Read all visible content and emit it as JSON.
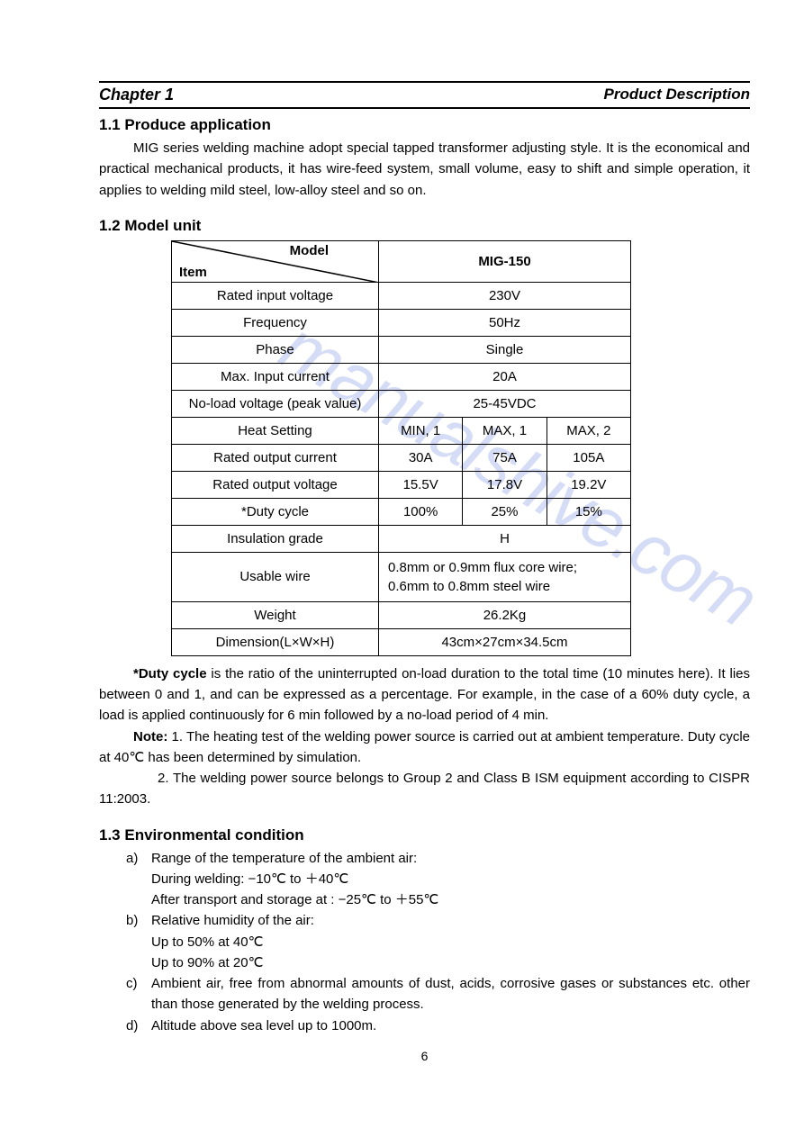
{
  "header": {
    "chapter": "Chapter 1",
    "title": "Product Description"
  },
  "section_1_1": {
    "title": "1.1 Produce application",
    "paragraph": "MIG series welding machine adopt special tapped transformer adjusting style. It is the economical and practical mechanical products, it has wire-feed system, small volume, easy to shift and simple operation, it applies to welding mild steel, low-alloy steel and so on."
  },
  "section_1_2": {
    "title": "1.2 Model unit",
    "table": {
      "header_model": "Model",
      "header_item": "Item",
      "header_value": "MIG-150",
      "rows": [
        {
          "label": "Rated input voltage",
          "value": "230V",
          "colspan": 3
        },
        {
          "label": "Frequency",
          "value": "50Hz",
          "colspan": 3
        },
        {
          "label": "Phase",
          "value": "Single",
          "colspan": 3
        },
        {
          "label": "Max. Input current",
          "value": "20A",
          "colspan": 3
        },
        {
          "label": "No-load voltage (peak value)",
          "value": "25-45VDC",
          "colspan": 3
        },
        {
          "label": "Heat Setting",
          "values": [
            "MIN, 1",
            "MAX, 1",
            "MAX, 2"
          ]
        },
        {
          "label": "Rated output current",
          "values": [
            "30A",
            "75A",
            "105A"
          ]
        },
        {
          "label": "Rated output voltage",
          "values": [
            "15.5V",
            "17.8V",
            "19.2V"
          ]
        },
        {
          "label": "*Duty cycle",
          "values": [
            "100%",
            "25%",
            "15%"
          ]
        },
        {
          "label": "Insulation grade",
          "value": "H",
          "colspan": 3
        },
        {
          "label": "Usable wire",
          "value": "0.8mm or 0.9mm flux core wire; 0.6mm to 0.8mm steel wire",
          "colspan": 3,
          "align": "left"
        },
        {
          "label": "Weight",
          "value": "26.2Kg",
          "colspan": 3
        },
        {
          "label": "Dimension(L×W×H)",
          "value": "43cm×27cm×34.5cm",
          "colspan": 3
        }
      ],
      "column_label_width": 230,
      "value_total_width": 280,
      "subcolumn_width": 93,
      "border_color": "#000000",
      "background_color": "#ffffff",
      "font_size": 15
    },
    "footnote": "*Duty cycle is the ratio of the uninterrupted on-load duration to the total time (10 minutes here). It lies between 0 and 1, and can be expressed as a percentage. For example, in the case of a 60% duty cycle, a load is applied continuously for 6 min followed by a no-load period of 4 min.",
    "note_label": "Note:",
    "note_1": "1. The heating test of the welding power source is carried out at ambient temperature. Duty cycle at 40℃ has been determined by simulation.",
    "note_2": "2. The welding power source belongs to Group 2 and Class B ISM equipment according to CISPR 11:2003."
  },
  "section_1_3": {
    "title": "1.3 Environmental condition",
    "items": [
      {
        "marker": "a)",
        "lines": [
          "Range of the temperature of the ambient air:",
          "During welding: −10℃ to ＋40℃",
          "After transport and storage at : −25℃ to ＋55℃"
        ]
      },
      {
        "marker": "b)",
        "lines": [
          "Relative humidity of the air:",
          "Up to 50% at 40℃",
          "Up to 90% at 20℃"
        ]
      },
      {
        "marker": "c)",
        "lines": [
          "Ambient air, free from abnormal amounts of dust, acids, corrosive gases or substances etc. other than those generated by the welding process."
        ]
      },
      {
        "marker": "d)",
        "lines": [
          "Altitude above sea level up to 1000m."
        ]
      }
    ]
  },
  "watermark_text": "manualshive.com",
  "page_number": "6",
  "colors": {
    "text": "#000000",
    "background": "#ffffff",
    "watermark": "#8a9de8"
  }
}
